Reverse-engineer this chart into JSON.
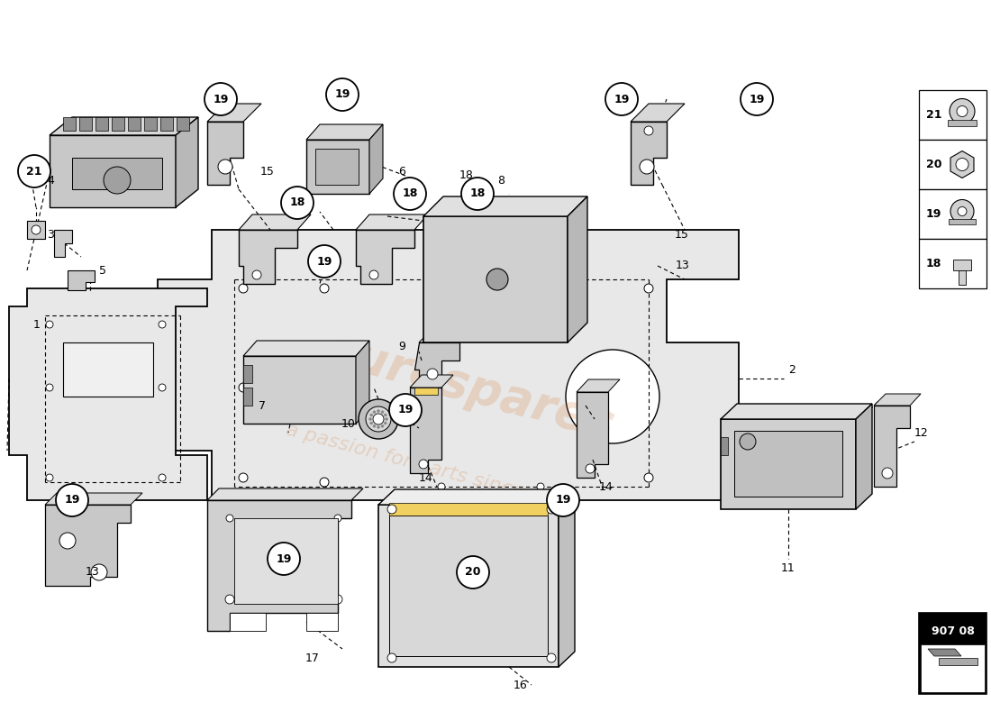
{
  "bg_color": "#ffffff",
  "line_color": "#000000",
  "fill_light": "#e8e8e8",
  "fill_mid": "#d0d0d0",
  "fill_dark": "#b0b0b0",
  "yellow": "#f0d060",
  "orange_wm": "#d06010",
  "fig_w": 11.0,
  "fig_h": 8.0,
  "dpi": 100
}
